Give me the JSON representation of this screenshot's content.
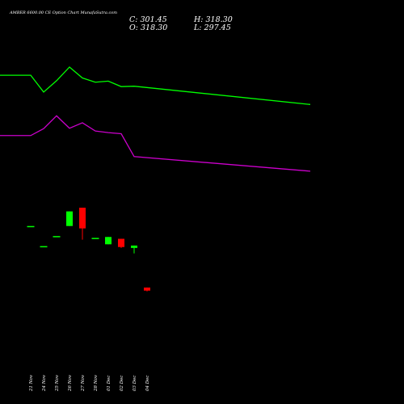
{
  "chart_data": {
    "type": "candlestick",
    "title": "AMBER 6600.00  CE Option  Chart MunafaSutra.com",
    "ohlc_text": {
      "close": "C: 301.45",
      "open": "O: 318.30",
      "high": "H: 318.30",
      "low": "L: 297.45"
    },
    "categories": [
      "21 Nov",
      "24 Nov",
      "25 Nov",
      "26 Nov",
      "27 Nov",
      "28 Nov",
      "01 Dec",
      "02 Dec",
      "03 Dec",
      "04 Dec"
    ],
    "candles": [
      {
        "o": 655,
        "h": 655,
        "l": 655,
        "c": 655
      },
      {
        "o": 545,
        "h": 545,
        "l": 545,
        "c": 545
      },
      {
        "o": 600,
        "h": 600,
        "l": 600,
        "c": 600
      },
      {
        "o": 655,
        "h": 735,
        "l": 655,
        "c": 735
      },
      {
        "o": 755,
        "h": 755,
        "l": 580,
        "c": 642
      },
      {
        "o": 590,
        "h": 590,
        "l": 590,
        "c": 590
      },
      {
        "o": 555,
        "h": 595,
        "l": 555,
        "c": 595
      },
      {
        "o": 585,
        "h": 585,
        "l": 535,
        "c": 540
      },
      {
        "o": 535,
        "h": 548,
        "l": 505,
        "c": 548
      },
      {
        "o": 318.3,
        "h": 318.3,
        "l": 297.45,
        "c": 301.45
      }
    ],
    "lines": [
      {
        "color": "#00ff00",
        "points": [
          [
            -1,
            1480
          ],
          [
            0,
            1480
          ],
          [
            1,
            1388
          ],
          [
            2,
            1450
          ],
          [
            3,
            1525
          ],
          [
            4,
            1465
          ],
          [
            5,
            1442
          ],
          [
            6,
            1448
          ],
          [
            7,
            1418
          ],
          [
            8,
            1420
          ],
          [
            9,
            1320
          ]
        ]
      },
      {
        "color": "#cc00cc",
        "points": [
          [
            -1,
            1150
          ],
          [
            0,
            1150
          ],
          [
            1,
            1188
          ],
          [
            2,
            1258
          ],
          [
            3,
            1190
          ],
          [
            4,
            1220
          ],
          [
            5,
            1175
          ],
          [
            6,
            1166
          ],
          [
            7,
            1160
          ],
          [
            8,
            1035
          ],
          [
            9,
            955
          ]
        ]
      }
    ],
    "colors": {
      "up": "#00ff00",
      "down": "#ff0000",
      "background": "#000000",
      "text": "#ffffff"
    },
    "ylim": [
      300,
      1600
    ],
    "grid": false,
    "legend": "none"
  }
}
